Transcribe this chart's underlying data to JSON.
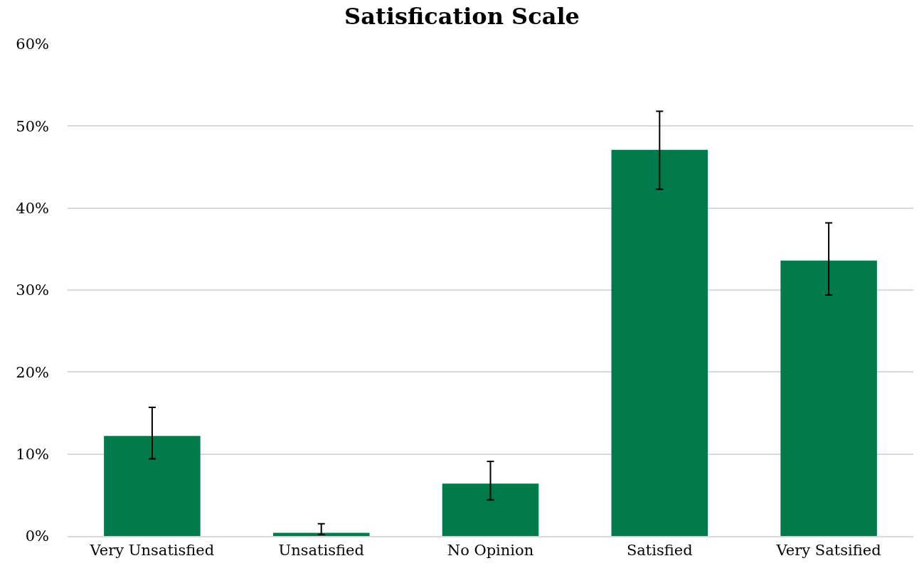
{
  "chart_data": {
    "type": "bar",
    "title": "Satisfication Scale",
    "categories": [
      "Very Unsatisfied",
      "Unsatisfied",
      "No Opinion",
      "Satisfied",
      "Very Satsified"
    ],
    "values": [
      12.2,
      0.4,
      6.4,
      47.1,
      33.6
    ],
    "errors": [
      [
        9.4,
        15.7
      ],
      [
        0.2,
        1.5
      ],
      [
        4.4,
        9.1
      ],
      [
        42.3,
        51.8
      ],
      [
        29.4,
        38.2
      ]
    ],
    "color": "#007a4b",
    "ylim": [
      0,
      60
    ],
    "yticks": [
      {
        "value": 0,
        "label": "0%"
      },
      {
        "value": 10,
        "label": "10%"
      },
      {
        "value": 20,
        "label": "20%"
      },
      {
        "value": 30,
        "label": "30%"
      },
      {
        "value": 40,
        "label": "40%"
      },
      {
        "value": 50,
        "label": "50%"
      },
      {
        "value": 60,
        "label": "60%"
      }
    ],
    "grid": "y"
  }
}
